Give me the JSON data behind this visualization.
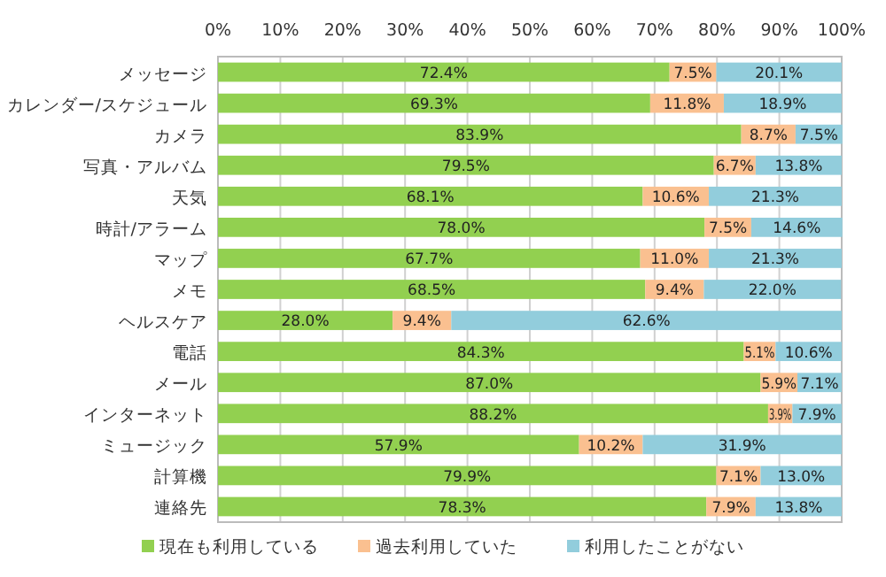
{
  "chart_data": {
    "type": "bar",
    "orientation": "horizontal",
    "stacked": true,
    "grid": "x",
    "legend": "bottom",
    "categories": [
      "メッセージ",
      "カレンダー/スケジュール",
      "カメラ",
      "写真・アルバム",
      "天気",
      "時計/アラーム",
      "マップ",
      "メモ",
      "ヘルスケア",
      "電話",
      "メール",
      "インターネット",
      "ミュージック",
      "計算機",
      "連絡先"
    ],
    "xlim": [
      0,
      100
    ],
    "xticks": [
      {
        "value": 0,
        "label": "0%"
      },
      {
        "value": 10,
        "label": "10%"
      },
      {
        "value": 20,
        "label": "20%"
      },
      {
        "value": 30,
        "label": "30%"
      },
      {
        "value": 40,
        "label": "40%"
      },
      {
        "value": 50,
        "label": "50%"
      },
      {
        "value": 60,
        "label": "60%"
      },
      {
        "value": 70,
        "label": "70%"
      },
      {
        "value": 80,
        "label": "80%"
      },
      {
        "value": 90,
        "label": "90%"
      },
      {
        "value": 100,
        "label": "100%"
      }
    ],
    "series": [
      {
        "name": "現在も利用している",
        "color": "#92d050",
        "values": [
          72.4,
          69.3,
          83.9,
          79.5,
          68.1,
          78.0,
          67.7,
          68.5,
          28.0,
          84.3,
          87.0,
          88.2,
          57.9,
          79.9,
          78.3
        ],
        "value_labels": [
          "72.4%",
          "69.3%",
          "83.9%",
          "79.5%",
          "68.1%",
          "78.0%",
          "67.7%",
          "68.5%",
          "28.0%",
          "84.3%",
          "87.0%",
          "88.2%",
          "57.9%",
          "79.9%",
          "78.3%"
        ]
      },
      {
        "name": "過去利用していた",
        "color": "#fac090",
        "values": [
          7.5,
          11.8,
          8.7,
          6.7,
          10.6,
          7.5,
          11.0,
          9.4,
          9.4,
          5.1,
          5.9,
          3.9,
          10.2,
          7.1,
          7.9
        ],
        "value_labels": [
          "7.5%",
          "11.8%",
          "8.7%",
          "6.7%",
          "10.6%",
          "7.5%",
          "11.0%",
          "9.4%",
          "9.4%",
          "5.1%",
          "5.9%",
          "3.9%",
          "10.2%",
          "7.1%",
          "7.9%"
        ]
      },
      {
        "name": "利用したことがない",
        "color": "#92cddc",
        "values": [
          20.1,
          18.9,
          7.5,
          13.8,
          21.3,
          14.6,
          21.3,
          22.0,
          62.6,
          10.6,
          7.1,
          7.9,
          31.9,
          13.0,
          13.8
        ],
        "value_labels": [
          "20.1%",
          "18.9%",
          "7.5%",
          "13.8%",
          "21.3%",
          "14.6%",
          "21.3%",
          "22.0%",
          "62.6%",
          "10.6%",
          "7.1%",
          "7.9%",
          "31.9%",
          "13.0%",
          "13.8%"
        ]
      }
    ]
  }
}
